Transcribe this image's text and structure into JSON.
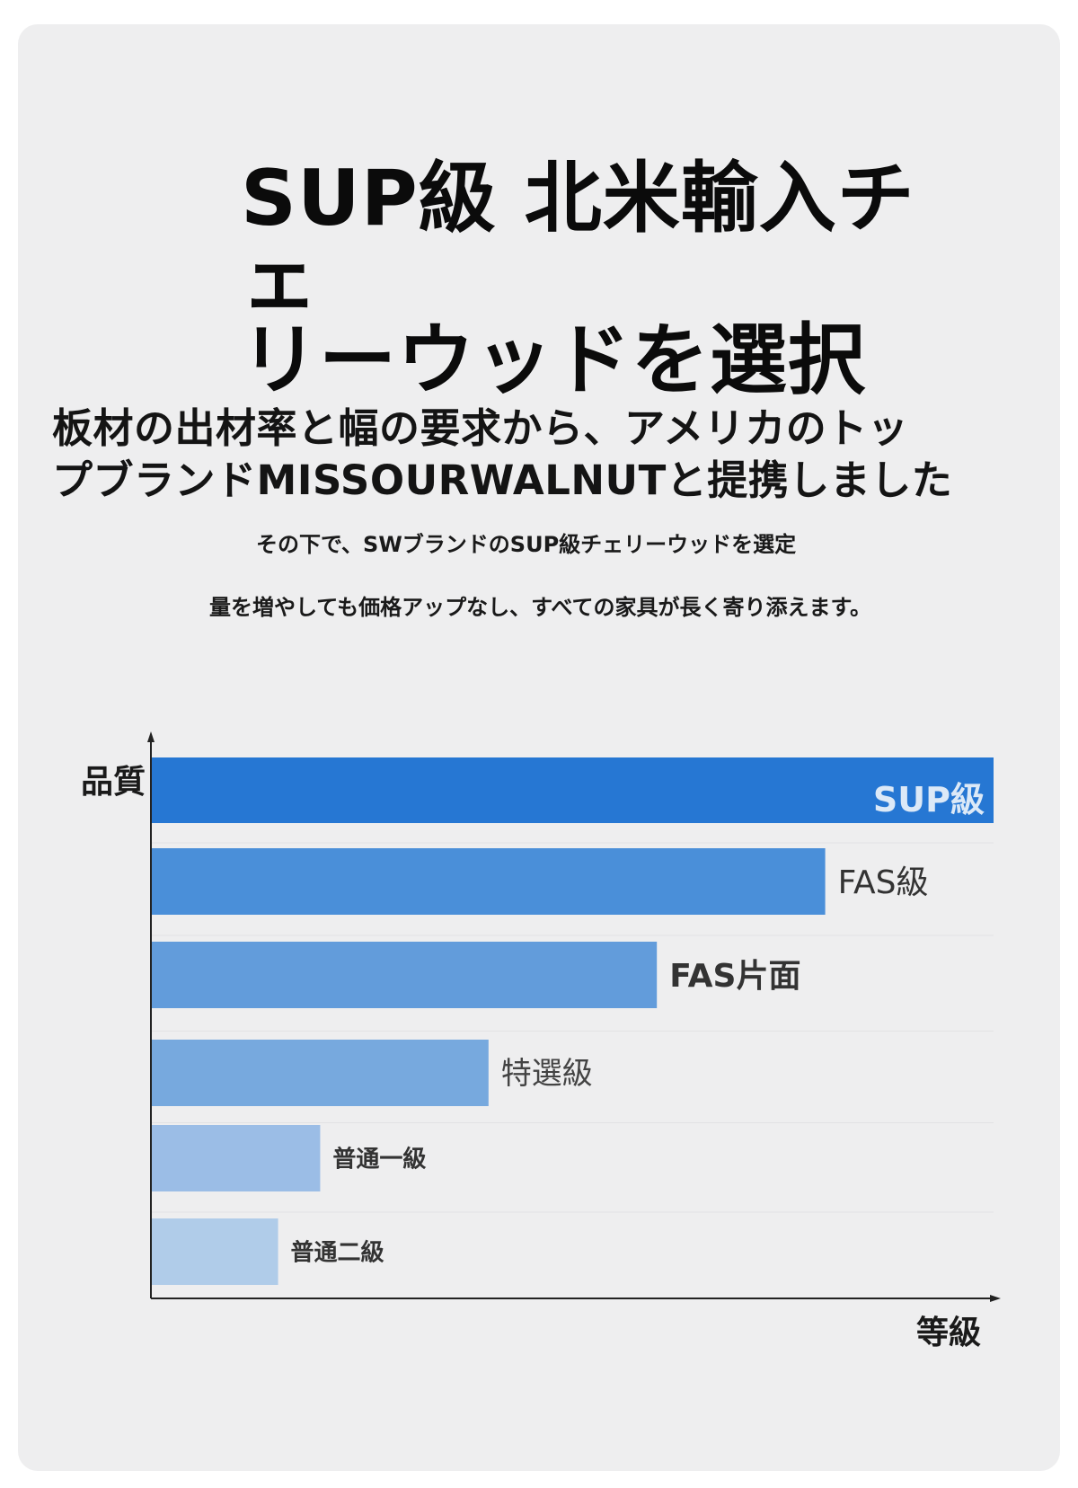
{
  "header": {
    "title": "SUP級 北米輸入チェ\nリーウッドを選択",
    "subtitle": "板材の出材率と幅の要求から、アメリカのトッ\nプブランドMISSOURWALNUTと提携しました",
    "line1": "その下で、SWブランドのSUP級チェリーウッドを選定",
    "line2": "量を増やしても価格アップなし、すべての家具が長く寄り添えます。"
  },
  "chart_data": {
    "type": "bar",
    "orientation": "horizontal",
    "categories": [
      "SUP級",
      "FAS級",
      "FAS片面",
      "特選級",
      "普通一級",
      "普通二級"
    ],
    "values": [
      100,
      80,
      60,
      40,
      20,
      15
    ],
    "xlabel": "等級",
    "ylabel": "品質",
    "xlim": [
      0,
      100
    ],
    "colors": [
      "#2677d3",
      "#4a8fd9",
      "#629cdb",
      "#77a9de",
      "#9bbde6",
      "#b0cce9"
    ],
    "label_colors": [
      "#dce9f7",
      "#333333",
      "#333333",
      "#444444",
      "#333333",
      "#333333"
    ],
    "grid": false
  }
}
